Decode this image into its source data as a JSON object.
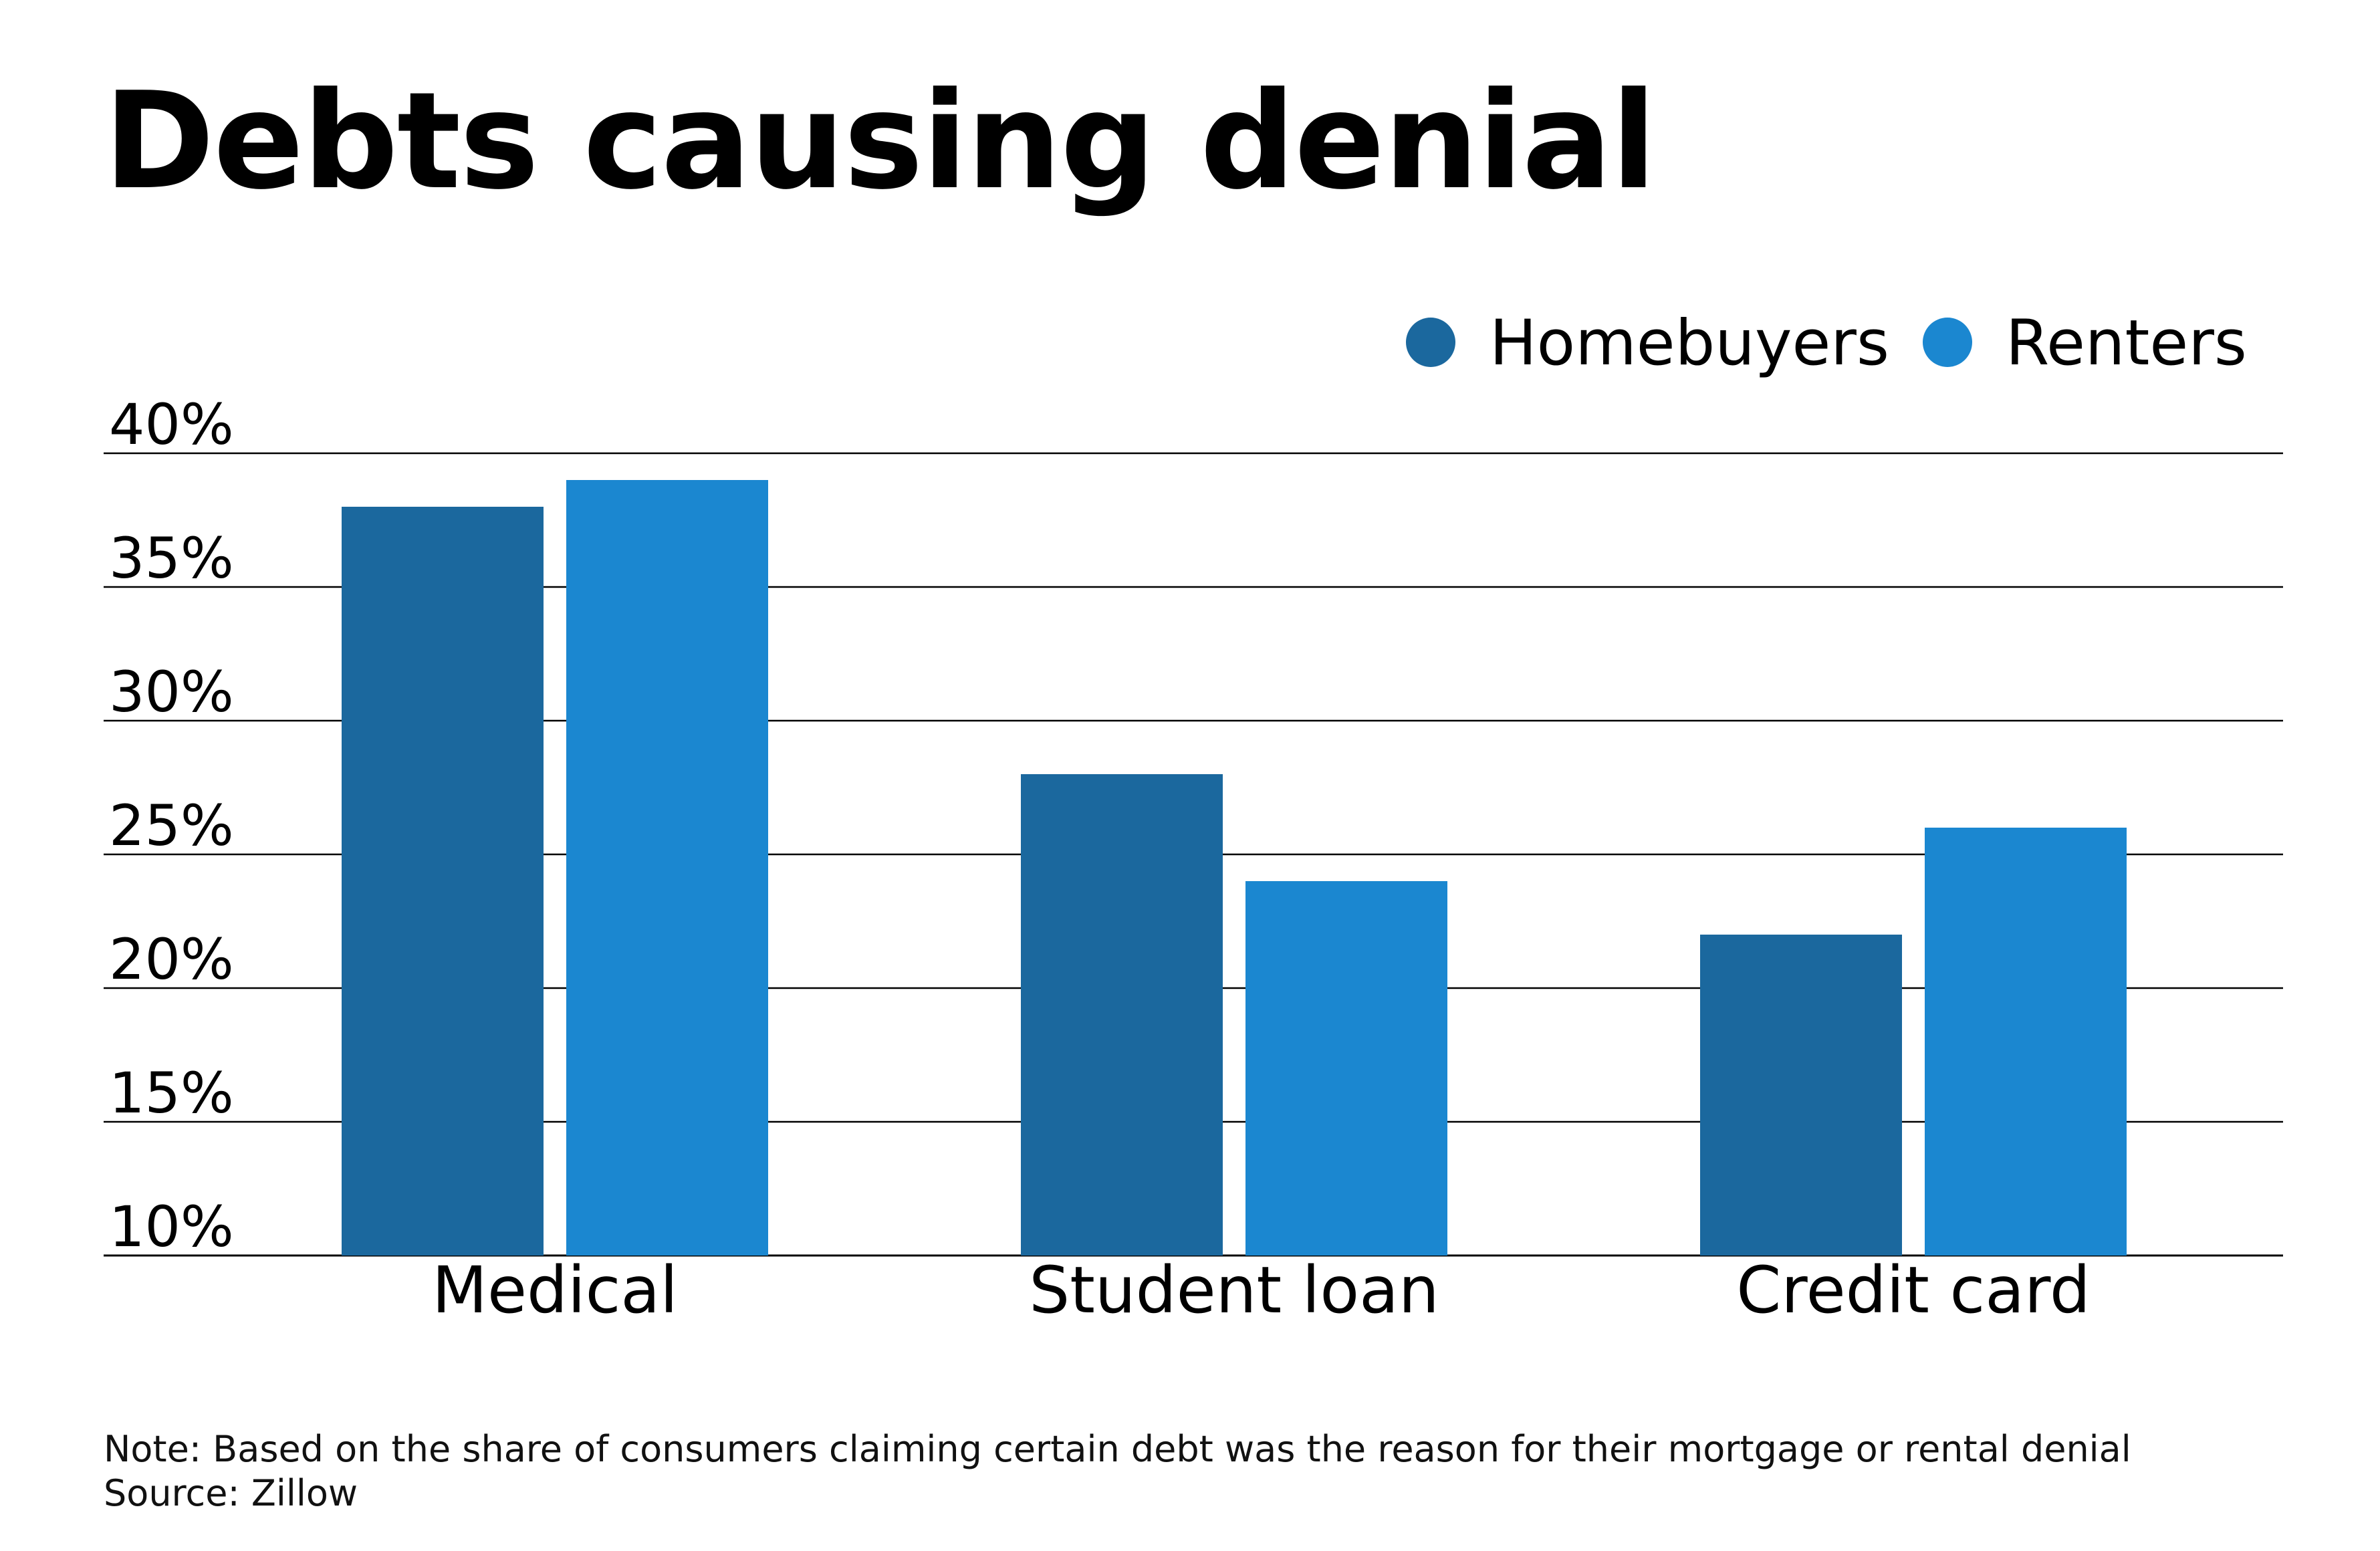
{
  "chart_data": {
    "type": "bar",
    "title": "Debts causing denial",
    "categories": [
      "Medical",
      "Student loan",
      "Credit card"
    ],
    "series": [
      {
        "name": "Homebuyers",
        "color": "#1b689e",
        "values": [
          38,
          28,
          22
        ]
      },
      {
        "name": "Renters",
        "color": "#1b87d0",
        "values": [
          39,
          24,
          26
        ]
      }
    ],
    "ylim": [
      10,
      40
    ],
    "yticks": [
      "10%",
      "15%",
      "20%",
      "25%",
      "30%",
      "35%",
      "40%"
    ],
    "ytick_values": [
      10,
      15,
      20,
      25,
      30,
      35,
      40
    ],
    "xlabel": "",
    "ylabel": "",
    "grid": true,
    "legend_position": "top-right",
    "note": "Note: Based on the share of consumers claiming certain debt was the reason for their mortgage or rental denial",
    "source": "Source: Zillow"
  }
}
